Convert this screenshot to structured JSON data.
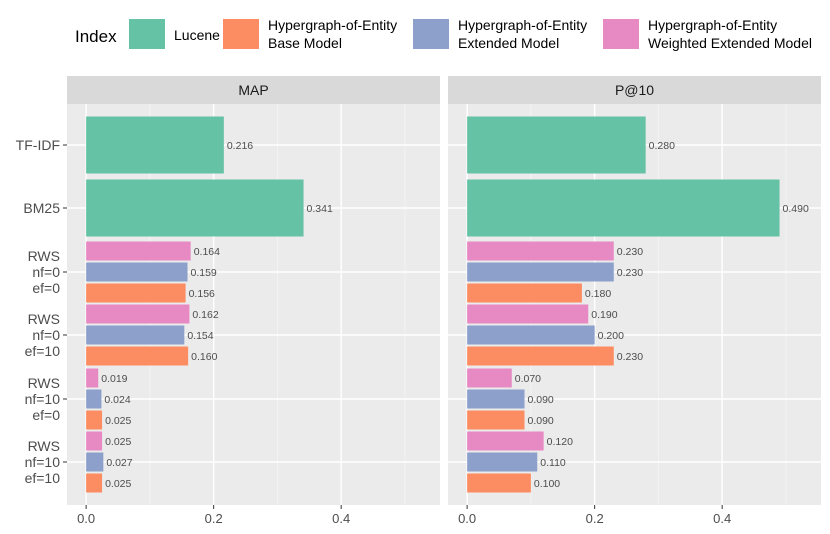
{
  "chart_data": {
    "type": "bar",
    "orientation": "horizontal",
    "legend": {
      "title": "Index",
      "position": "top",
      "entries": [
        {
          "key": "lucene",
          "lines": [
            "Lucene"
          ],
          "color": "#66c2a5"
        },
        {
          "key": "base",
          "lines": [
            "Hypergraph-of-Entity",
            "Base Model"
          ],
          "color": "#fc8d62"
        },
        {
          "key": "extended",
          "lines": [
            "Hypergraph-of-Entity",
            "Extended Model"
          ],
          "color": "#8da0cb"
        },
        {
          "key": "weighted",
          "lines": [
            "Hypergraph-of-Entity",
            "Weighted Extended Model"
          ],
          "color": "#e78ac3"
        }
      ]
    },
    "categories": [
      {
        "lines": [
          "TF-IDF"
        ]
      },
      {
        "lines": [
          "BM25"
        ]
      },
      {
        "lines": [
          "RWS",
          "nf=0",
          "ef=0"
        ]
      },
      {
        "lines": [
          "RWS",
          "nf=0",
          "ef=10"
        ]
      },
      {
        "lines": [
          "RWS",
          "nf=10",
          "ef=0"
        ]
      },
      {
        "lines": [
          "RWS",
          "nf=10",
          "ef=10"
        ]
      }
    ],
    "x_ticks": [
      "0.0",
      "0.2",
      "0.4"
    ],
    "x_tick_values": [
      0,
      0.2,
      0.4
    ],
    "xlim": [
      -0.03,
      0.555
    ],
    "grid": true,
    "panels": [
      {
        "title": "MAP",
        "bars": [
          {
            "category": 0,
            "series": "lucene",
            "value": 0.216,
            "label": "0.216"
          },
          {
            "category": 1,
            "series": "lucene",
            "value": 0.341,
            "label": "0.341"
          },
          {
            "category": 2,
            "series": "weighted",
            "value": 0.164,
            "label": "0.164"
          },
          {
            "category": 2,
            "series": "extended",
            "value": 0.159,
            "label": "0.159"
          },
          {
            "category": 2,
            "series": "base",
            "value": 0.156,
            "label": "0.156"
          },
          {
            "category": 3,
            "series": "weighted",
            "value": 0.162,
            "label": "0.162"
          },
          {
            "category": 3,
            "series": "extended",
            "value": 0.154,
            "label": "0.154"
          },
          {
            "category": 3,
            "series": "base",
            "value": 0.16,
            "label": "0.160"
          },
          {
            "category": 4,
            "series": "weighted",
            "value": 0.019,
            "label": "0.019"
          },
          {
            "category": 4,
            "series": "extended",
            "value": 0.024,
            "label": "0.024"
          },
          {
            "category": 4,
            "series": "base",
            "value": 0.025,
            "label": "0.025"
          },
          {
            "category": 5,
            "series": "weighted",
            "value": 0.025,
            "label": "0.025"
          },
          {
            "category": 5,
            "series": "extended",
            "value": 0.027,
            "label": "0.027"
          },
          {
            "category": 5,
            "series": "base",
            "value": 0.025,
            "label": "0.025"
          }
        ]
      },
      {
        "title": "P@10",
        "bars": [
          {
            "category": 0,
            "series": "lucene",
            "value": 0.28,
            "label": "0.280"
          },
          {
            "category": 1,
            "series": "lucene",
            "value": 0.49,
            "label": "0.490"
          },
          {
            "category": 2,
            "series": "weighted",
            "value": 0.23,
            "label": "0.230"
          },
          {
            "category": 2,
            "series": "extended",
            "value": 0.23,
            "label": "0.230"
          },
          {
            "category": 2,
            "series": "base",
            "value": 0.18,
            "label": "0.180"
          },
          {
            "category": 3,
            "series": "weighted",
            "value": 0.19,
            "label": "0.190"
          },
          {
            "category": 3,
            "series": "extended",
            "value": 0.2,
            "label": "0.200"
          },
          {
            "category": 3,
            "series": "base",
            "value": 0.23,
            "label": "0.230"
          },
          {
            "category": 4,
            "series": "weighted",
            "value": 0.07,
            "label": "0.070"
          },
          {
            "category": 4,
            "series": "extended",
            "value": 0.09,
            "label": "0.090"
          },
          {
            "category": 4,
            "series": "base",
            "value": 0.09,
            "label": "0.090"
          },
          {
            "category": 5,
            "series": "weighted",
            "value": 0.12,
            "label": "0.120"
          },
          {
            "category": 5,
            "series": "extended",
            "value": 0.11,
            "label": "0.110"
          },
          {
            "category": 5,
            "series": "base",
            "value": 0.1,
            "label": "0.100"
          }
        ]
      }
    ]
  }
}
